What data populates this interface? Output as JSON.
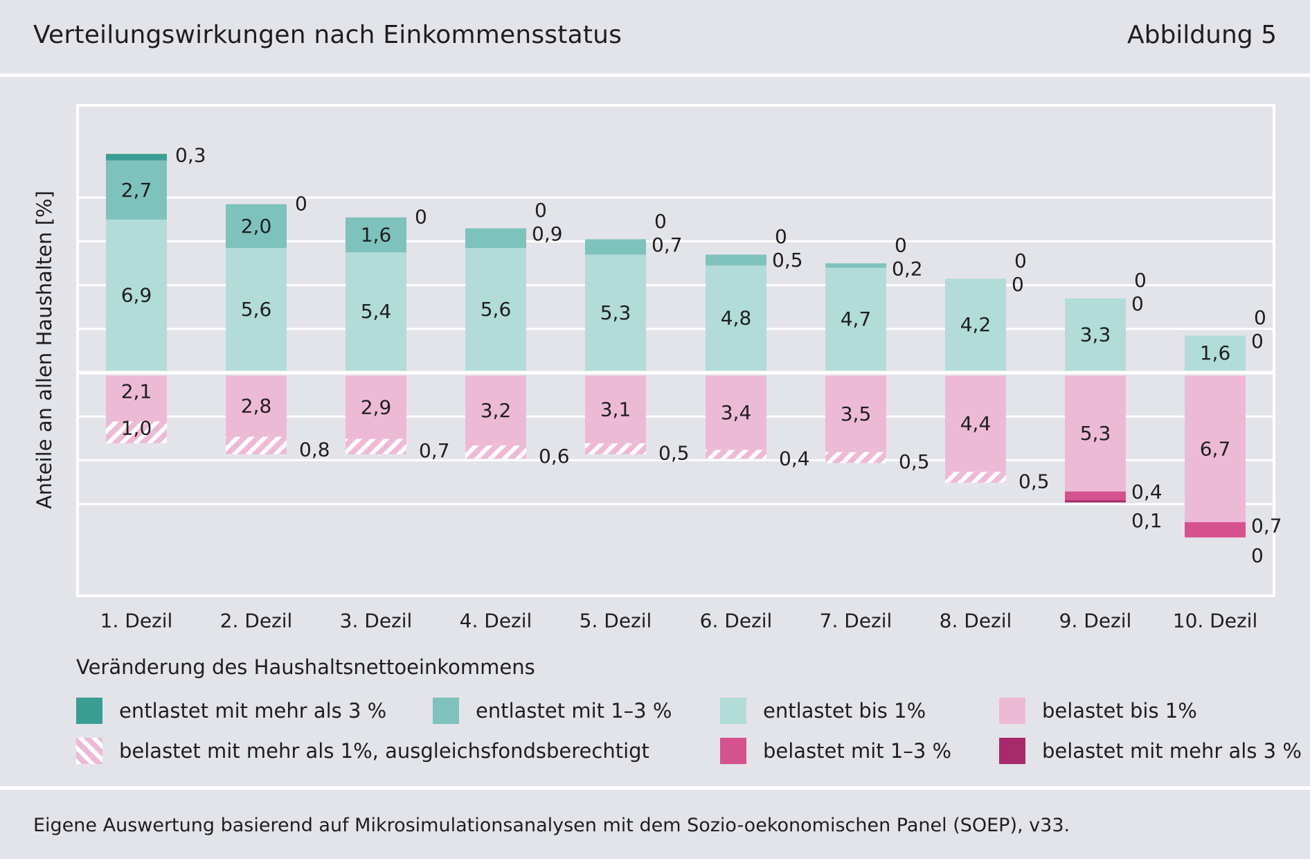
{
  "header": {
    "title": "Verteilungswirkungen nach Einkommensstatus",
    "figure_label": "Abbildung 5"
  },
  "chart_data": {
    "type": "bar",
    "stacked": true,
    "diverging": true,
    "ylabel": "Anteile an allen Haushalten [%]",
    "xlabel": "",
    "categories": [
      "1. Dezil",
      "2. Dezil",
      "3. Dezil",
      "4. Dezil",
      "5. Dezil",
      "6. Dezil",
      "7. Dezil",
      "8. Dezil",
      "9. Dezil",
      "10. Dezil"
    ],
    "ylim": [
      -13,
      15
    ],
    "grid": true,
    "legend_placement": "bottom",
    "positive_series": [
      {
        "name": "entlastet bis 1%",
        "color": "#b1dcd8",
        "values": [
          "6,9",
          "5,6",
          "5,4",
          "5,6",
          "5,3",
          "4,8",
          "4,7",
          "4,2",
          "3,3",
          "1,6"
        ],
        "numeric": [
          6.9,
          5.6,
          5.4,
          5.6,
          5.3,
          4.8,
          4.7,
          4.2,
          3.3,
          1.6
        ]
      },
      {
        "name": "entlastet mit 1–3 %",
        "color": "#7ec2bd",
        "values": [
          "2,7",
          "2,0",
          "1,6",
          "0,9",
          "0,7",
          "0,5",
          "0,2",
          "0",
          "0",
          "0"
        ],
        "numeric": [
          2.7,
          2.0,
          1.6,
          0.9,
          0.7,
          0.5,
          0.2,
          0,
          0,
          0
        ]
      },
      {
        "name": "entlastet mit mehr als 3 %",
        "color": "#3a9e94",
        "values": [
          "0,3",
          "0",
          "0",
          "0",
          "0",
          "0",
          "0",
          "0",
          "0",
          "0"
        ],
        "numeric": [
          0.3,
          0,
          0,
          0,
          0,
          0,
          0,
          0,
          0,
          0
        ]
      }
    ],
    "negative_series": [
      {
        "name": "belastet bis 1%",
        "color": "#edbad6",
        "values": [
          "2,1",
          "2,8",
          "2,9",
          "3,2",
          "3,1",
          "3,4",
          "3,5",
          "4,4",
          "5,3",
          "6,7"
        ],
        "numeric": [
          2.1,
          2.8,
          2.9,
          3.2,
          3.1,
          3.4,
          3.5,
          4.4,
          5.3,
          6.7
        ]
      },
      {
        "name": "belastet mit mehr als 1%, ausgleichsfondsberechtigt",
        "color": "#edbad6",
        "pattern": "hatched",
        "values": [
          "1,0",
          "0,8",
          "0,7",
          "0,6",
          "0,5",
          "0,4",
          "0,5",
          "0,5",
          "0",
          "0"
        ],
        "numeric": [
          1.0,
          0.8,
          0.7,
          0.6,
          0.5,
          0.4,
          0.5,
          0.5,
          0,
          0
        ]
      },
      {
        "name": "belastet mit 1–3 %",
        "color": "#d6528e",
        "values": [
          "0",
          "0",
          "0",
          "0",
          "0",
          "0",
          "0",
          "0",
          "0,4",
          "0,7"
        ],
        "numeric": [
          0,
          0,
          0,
          0,
          0,
          0,
          0,
          0,
          0.4,
          0.7
        ]
      },
      {
        "name": "belastet mit mehr als 3 %",
        "color": "#a62a6c",
        "values": [
          "0",
          "0",
          "0",
          "0",
          "0",
          "0",
          "0",
          "0",
          "0,1",
          "0"
        ],
        "numeric": [
          0,
          0,
          0,
          0,
          0,
          0,
          0,
          0,
          0.1,
          0
        ]
      }
    ],
    "printed_labels": [
      {
        "bar": 0,
        "inside": [
          "6,9",
          "2,7",
          "2,1",
          "1,0"
        ],
        "outside": [
          "0,3"
        ]
      },
      {
        "bar": 1,
        "inside": [
          "5,6",
          "2,0",
          "2,8"
        ],
        "outside": [
          "0",
          "0,8"
        ]
      },
      {
        "bar": 2,
        "inside": [
          "5,4",
          "1,6",
          "2,9"
        ],
        "outside": [
          "0",
          "0,7"
        ]
      },
      {
        "bar": 3,
        "inside": [
          "5,6",
          "3,2"
        ],
        "outside": [
          "0",
          "0,9",
          "0,6"
        ]
      },
      {
        "bar": 4,
        "inside": [
          "5,3",
          "3,1"
        ],
        "outside": [
          "0",
          "0,7",
          "0,5"
        ]
      },
      {
        "bar": 5,
        "inside": [
          "4,8",
          "3,4"
        ],
        "outside": [
          "0",
          "0,5",
          "0,4"
        ]
      },
      {
        "bar": 6,
        "inside": [
          "4,7",
          "3,5"
        ],
        "outside": [
          "0",
          "0,2",
          "0,5"
        ]
      },
      {
        "bar": 7,
        "inside": [
          "4,2",
          "4,4"
        ],
        "outside": [
          "0",
          "0",
          "0,5"
        ]
      },
      {
        "bar": 8,
        "inside": [
          "3,3",
          "5,3"
        ],
        "outside": [
          "0",
          "0",
          "0,4",
          "0,1"
        ]
      },
      {
        "bar": 9,
        "inside": [
          "1,6",
          "6,7"
        ],
        "outside": [
          "0",
          "0",
          "0,7",
          "0"
        ]
      }
    ]
  },
  "legend": {
    "title": "Veränderung des Haushaltsnettoeinkommens",
    "items": [
      {
        "label": "entlastet mit mehr als 3 %",
        "color": "#3a9e94"
      },
      {
        "label": "entlastet mit 1–3 %",
        "color": "#7ec2bd"
      },
      {
        "label": "entlastet bis 1%",
        "color": "#b1dcd8"
      },
      {
        "label": "belastet bis 1%",
        "color": "#edbad6"
      },
      {
        "label": "belastet mit mehr als 1%, ausgleichsfondsberechtigt",
        "color": "#edbad6",
        "pattern": "hatched"
      },
      {
        "label": "belastet mit 1–3 %",
        "color": "#d6528e"
      },
      {
        "label": "belastet mit mehr als 3 %",
        "color": "#a62a6c"
      }
    ]
  },
  "footer": {
    "source": "Eigene Auswertung basierend auf Mikrosimulationsanalysen mit dem Sozio-oekonomischen Panel (SOEP), v33."
  }
}
